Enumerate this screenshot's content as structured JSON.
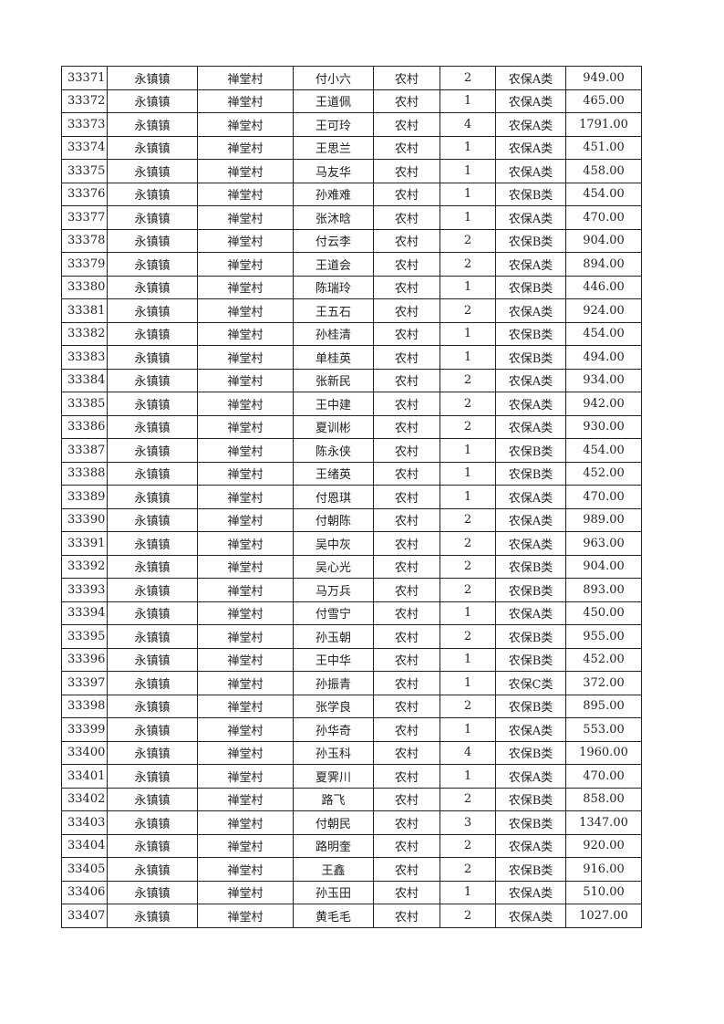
{
  "table": {
    "rows": [
      [
        "33371",
        "永镇镇",
        "禅堂村",
        "付小六",
        "农村",
        "2",
        "农保A类",
        "949.00"
      ],
      [
        "33372",
        "永镇镇",
        "禅堂村",
        "王道佩",
        "农村",
        "1",
        "农保A类",
        "465.00"
      ],
      [
        "33373",
        "永镇镇",
        "禅堂村",
        "王可玲",
        "农村",
        "4",
        "农保A类",
        "1791.00"
      ],
      [
        "33374",
        "永镇镇",
        "禅堂村",
        "王思兰",
        "农村",
        "1",
        "农保A类",
        "451.00"
      ],
      [
        "33375",
        "永镇镇",
        "禅堂村",
        "马友华",
        "农村",
        "1",
        "农保A类",
        "458.00"
      ],
      [
        "33376",
        "永镇镇",
        "禅堂村",
        "孙难难",
        "农村",
        "1",
        "农保B类",
        "454.00"
      ],
      [
        "33377",
        "永镇镇",
        "禅堂村",
        "张沐晗",
        "农村",
        "1",
        "农保A类",
        "470.00"
      ],
      [
        "33378",
        "永镇镇",
        "禅堂村",
        "付云李",
        "农村",
        "2",
        "农保B类",
        "904.00"
      ],
      [
        "33379",
        "永镇镇",
        "禅堂村",
        "王道会",
        "农村",
        "2",
        "农保A类",
        "894.00"
      ],
      [
        "33380",
        "永镇镇",
        "禅堂村",
        "陈瑞玲",
        "农村",
        "1",
        "农保B类",
        "446.00"
      ],
      [
        "33381",
        "永镇镇",
        "禅堂村",
        "王五石",
        "农村",
        "2",
        "农保A类",
        "924.00"
      ],
      [
        "33382",
        "永镇镇",
        "禅堂村",
        "孙桂清",
        "农村",
        "1",
        "农保B类",
        "454.00"
      ],
      [
        "33383",
        "永镇镇",
        "禅堂村",
        "单桂英",
        "农村",
        "1",
        "农保B类",
        "494.00"
      ],
      [
        "33384",
        "永镇镇",
        "禅堂村",
        "张新民",
        "农村",
        "2",
        "农保A类",
        "934.00"
      ],
      [
        "33385",
        "永镇镇",
        "禅堂村",
        "王中建",
        "农村",
        "2",
        "农保A类",
        "942.00"
      ],
      [
        "33386",
        "永镇镇",
        "禅堂村",
        "夏训彬",
        "农村",
        "2",
        "农保A类",
        "930.00"
      ],
      [
        "33387",
        "永镇镇",
        "禅堂村",
        "陈永侠",
        "农村",
        "1",
        "农保B类",
        "454.00"
      ],
      [
        "33388",
        "永镇镇",
        "禅堂村",
        "王绪英",
        "农村",
        "1",
        "农保B类",
        "452.00"
      ],
      [
        "33389",
        "永镇镇",
        "禅堂村",
        "付恩琪",
        "农村",
        "1",
        "农保A类",
        "470.00"
      ],
      [
        "33390",
        "永镇镇",
        "禅堂村",
        "付朝陈",
        "农村",
        "2",
        "农保A类",
        "989.00"
      ],
      [
        "33391",
        "永镇镇",
        "禅堂村",
        "吴中灰",
        "农村",
        "2",
        "农保A类",
        "963.00"
      ],
      [
        "33392",
        "永镇镇",
        "禅堂村",
        "吴心光",
        "农村",
        "2",
        "农保B类",
        "904.00"
      ],
      [
        "33393",
        "永镇镇",
        "禅堂村",
        "马万兵",
        "农村",
        "2",
        "农保B类",
        "893.00"
      ],
      [
        "33394",
        "永镇镇",
        "禅堂村",
        "付雪宁",
        "农村",
        "1",
        "农保A类",
        "450.00"
      ],
      [
        "33395",
        "永镇镇",
        "禅堂村",
        "孙玉朝",
        "农村",
        "2",
        "农保B类",
        "955.00"
      ],
      [
        "33396",
        "永镇镇",
        "禅堂村",
        "王中华",
        "农村",
        "1",
        "农保B类",
        "452.00"
      ],
      [
        "33397",
        "永镇镇",
        "禅堂村",
        "孙振青",
        "农村",
        "1",
        "农保C类",
        "372.00"
      ],
      [
        "33398",
        "永镇镇",
        "禅堂村",
        "张学良",
        "农村",
        "2",
        "农保B类",
        "895.00"
      ],
      [
        "33399",
        "永镇镇",
        "禅堂村",
        "孙华奇",
        "农村",
        "1",
        "农保A类",
        "553.00"
      ],
      [
        "33400",
        "永镇镇",
        "禅堂村",
        "孙玉科",
        "农村",
        "4",
        "农保B类",
        "1960.00"
      ],
      [
        "33401",
        "永镇镇",
        "禅堂村",
        "夏霁川",
        "农村",
        "1",
        "农保A类",
        "470.00"
      ],
      [
        "33402",
        "永镇镇",
        "禅堂村",
        "路飞",
        "农村",
        "2",
        "农保B类",
        "858.00"
      ],
      [
        "33403",
        "永镇镇",
        "禅堂村",
        "付朝民",
        "农村",
        "3",
        "农保B类",
        "1347.00"
      ],
      [
        "33404",
        "永镇镇",
        "禅堂村",
        "路明奎",
        "农村",
        "2",
        "农保A类",
        "920.00"
      ],
      [
        "33405",
        "永镇镇",
        "禅堂村",
        "王鑫",
        "农村",
        "2",
        "农保B类",
        "916.00"
      ],
      [
        "33406",
        "永镇镇",
        "禅堂村",
        "孙玉田",
        "农村",
        "1",
        "农保A类",
        "510.00"
      ],
      [
        "33407",
        "永镇镇",
        "禅堂村",
        "黄毛毛",
        "农村",
        "2",
        "农保A类",
        "1027.00"
      ]
    ]
  }
}
